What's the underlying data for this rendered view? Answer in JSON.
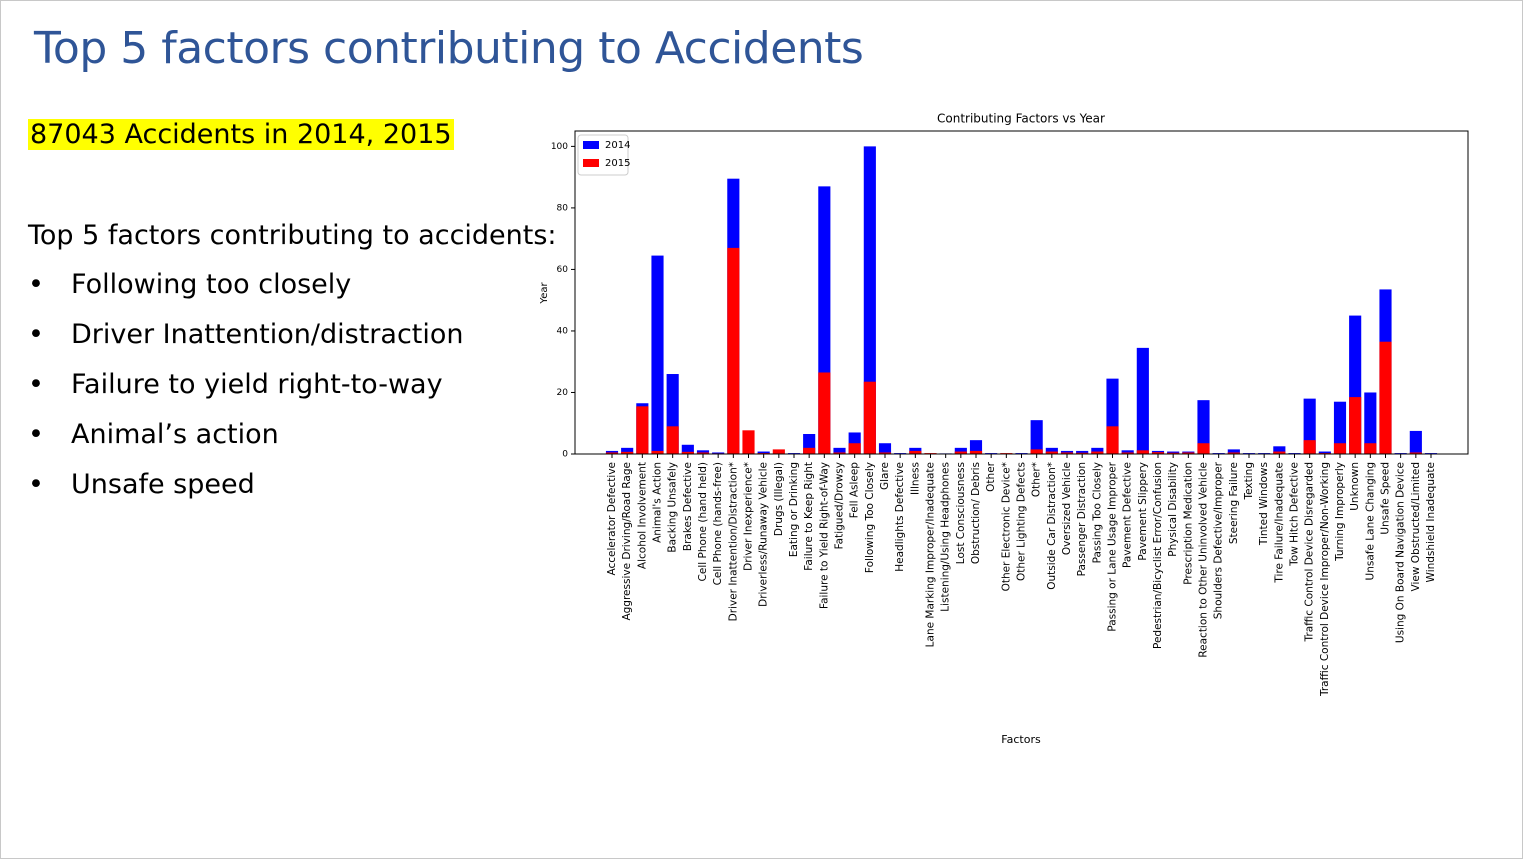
{
  "slide": {
    "title": "Top 5 factors contributing to Accidents",
    "highlight": "87043 Accidents in 2014, 2015",
    "list_heading": "Top 5 factors contributing to accidents:",
    "bullets": [
      "Following too closely",
      "Driver Inattention/distraction",
      "Failure to yield right-to-way",
      "Animal’s action",
      "Unsafe speed"
    ]
  },
  "chart_data": {
    "type": "bar",
    "title": "Contributing Factors vs Year",
    "x_label": "Factors",
    "y_label": "Year",
    "categories": [
      "Accelerator Defective",
      "Aggressive Driving/Road Rage",
      "Alcohol Involvement",
      "Animal's Action",
      "Backing Unsafely",
      "Brakes Defective",
      "Cell Phone (hand held)",
      "Cell Phone (hands-free)",
      "Driver Inattention/Distraction*",
      "Driver Inexperience*",
      "Driverless/Runaway Vehicle",
      "Drugs (Illegal)",
      "Eating or Drinking",
      "Failure to Keep Right",
      "Failure to Yield Right-of-Way",
      "Fatigued/Drowsy",
      "Fell Asleep",
      "Following Too Closely",
      "Glare",
      "Headlights Defective",
      "Illness",
      "Lane Marking Improper/Inadequate",
      "Listening/Using Headphones",
      "Lost Consciousness",
      "Obstruction/ Debris",
      "Other",
      "Other Electronic Device*",
      "Other Lighting Defects",
      "Other*",
      "Outside Car Distraction*",
      "Oversized Vehicle",
      "Passenger Distraction",
      "Passing Too Closely",
      "Passing or Lane Usage Improper",
      "Pavement Defective",
      "Pavement Slippery",
      "Pedestrian/Bicyclist Error/Confusion",
      "Physical Disability",
      "Prescription Medication",
      "Reaction to Other Uninvolved Vehicle",
      "Shoulders Defective/Improper",
      "Steering Failure",
      "Texting",
      "Tinted Windows",
      "Tire Failure/Inadequate",
      "Tow Hitch Defective",
      "Traffic Control Device Disregarded",
      "Traffic Control Device Improper/Non-Working",
      "Turning Improperly",
      "Unknown",
      "Unsafe Lane Changing",
      "Unsafe Speed",
      "Using On Board Navigation Device",
      "View Obstructed/Limited",
      "Windshield Inadequate"
    ],
    "series": [
      {
        "name": "2014",
        "color": "#0000ff",
        "values": [
          1,
          2,
          16.5,
          64.5,
          26,
          3,
          1.2,
          0.5,
          89.5,
          0,
          0.8,
          0,
          0.3,
          6.5,
          87,
          2,
          7,
          100,
          3.5,
          0.3,
          2,
          0,
          0.2,
          2,
          4.5,
          0.3,
          0,
          0.3,
          11,
          2,
          1,
          1,
          2,
          24.5,
          1.2,
          34.5,
          1,
          0.8,
          0.8,
          17.5,
          0.3,
          1.5,
          0.3,
          0.3,
          2.5,
          0.3,
          18,
          0.8,
          17,
          45,
          20,
          53.5,
          0.3,
          7.5,
          0.3
        ]
      },
      {
        "name": "2015",
        "color": "#ff0000",
        "values": [
          0.5,
          0.7,
          15.5,
          1,
          9,
          0.7,
          0.5,
          0.2,
          67,
          7.7,
          0.3,
          1.5,
          0,
          2,
          26.5,
          0.5,
          3.5,
          23.5,
          0.5,
          0.1,
          1,
          0.3,
          0,
          0.8,
          1,
          0.1,
          0.3,
          0.1,
          1.5,
          0.8,
          0.5,
          0.4,
          0.8,
          9,
          0.5,
          1.2,
          0.6,
          0.4,
          0.5,
          3.5,
          0.1,
          0.5,
          0.1,
          0,
          0.8,
          0,
          4.5,
          0.3,
          3.5,
          18.5,
          3.5,
          36.5,
          0.1,
          0.5,
          0.1
        ]
      }
    ],
    "ylim": [
      0,
      105
    ],
    "yticks": [
      0,
      20,
      40,
      60,
      80,
      100
    ],
    "legend": "upper left"
  }
}
